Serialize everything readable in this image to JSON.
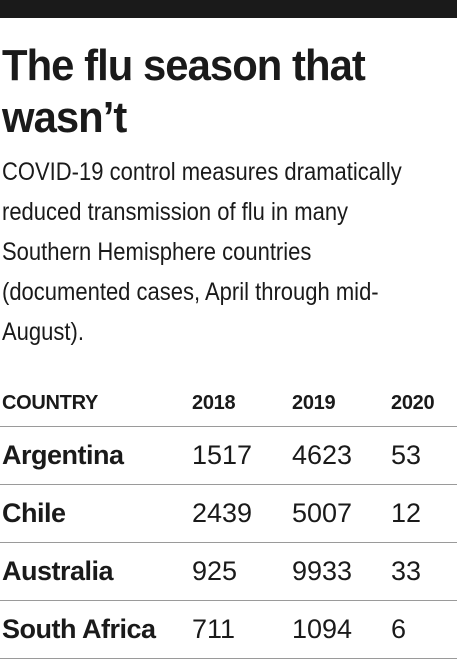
{
  "title": "The flu season that wasn’t",
  "subtitle": "COVID-19 control measures dramatically reduced transmission of flu in many Southern Hemisphere countries (documented cases, April through mid-August).",
  "chart_data": {
    "type": "table",
    "columns": [
      "COUNTRY",
      "2018",
      "2019",
      "2020"
    ],
    "rows": [
      {
        "country": "Argentina",
        "values": [
          1517,
          4623,
          53
        ]
      },
      {
        "country": "Chile",
        "values": [
          2439,
          5007,
          12
        ]
      },
      {
        "country": "Australia",
        "values": [
          925,
          9933,
          33
        ]
      },
      {
        "country": "South Africa",
        "values": [
          711,
          1094,
          6
        ]
      }
    ]
  }
}
